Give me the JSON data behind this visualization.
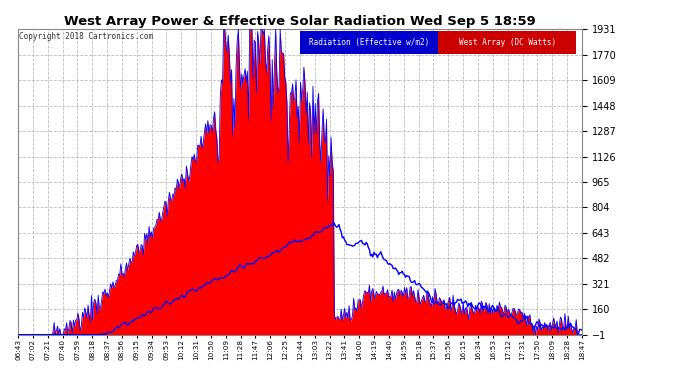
{
  "title": "West Array Power & Effective Solar Radiation Wed Sep 5 18:59",
  "copyright": "Copyright 2018 Cartronics.com",
  "legend_radiation": "Radiation (Effective w/m2)",
  "legend_west": "West Array (DC Watts)",
  "legend_radiation_bg": "#0000cc",
  "legend_west_bg": "#cc0000",
  "ymin": -1.0,
  "ymax": 1931.0,
  "yticks": [
    -1.0,
    160.0,
    321.0,
    482.0,
    643.0,
    804.0,
    965.0,
    1126.0,
    1287.0,
    1448.0,
    1609.0,
    1770.0,
    1931.0
  ],
  "background_color": "#ffffff",
  "plot_bg_color": "#ffffff",
  "grid_color": "#bbbbbb",
  "title_color": "#000000",
  "tick_color": "#000000",
  "radiation_fill_color": "#ff0000",
  "radiation_line_color": "#0000ff",
  "west_line_color": "#0000ff",
  "xtick_labels": [
    "06:43",
    "07:02",
    "07:21",
    "07:40",
    "07:59",
    "08:18",
    "08:37",
    "08:56",
    "09:15",
    "09:34",
    "09:53",
    "10:12",
    "10:31",
    "10:50",
    "11:09",
    "11:28",
    "11:47",
    "12:06",
    "12:25",
    "12:44",
    "13:03",
    "13:22",
    "13:41",
    "14:00",
    "14:19",
    "14:40",
    "14:59",
    "15:18",
    "15:37",
    "15:56",
    "16:15",
    "16:34",
    "16:53",
    "17:12",
    "17:31",
    "17:50",
    "18:09",
    "18:28",
    "18:47"
  ]
}
